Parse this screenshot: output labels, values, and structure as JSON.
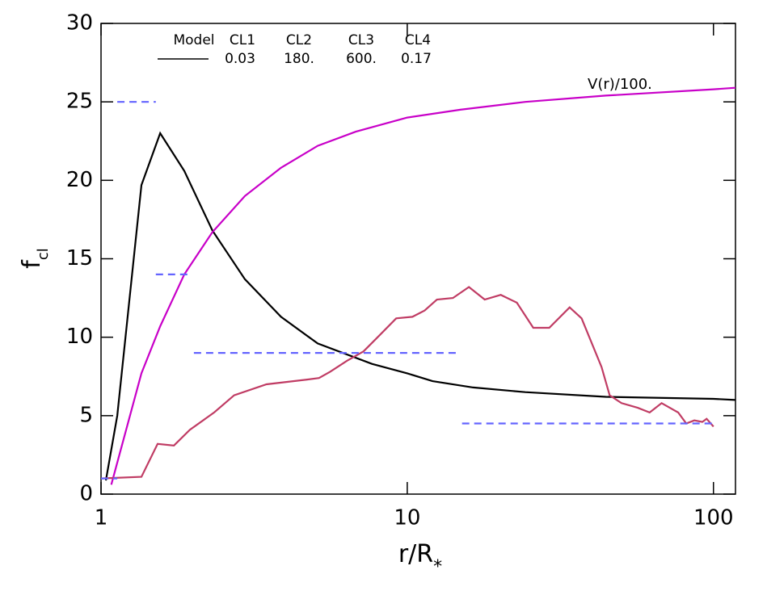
{
  "chart_data": {
    "type": "line",
    "xlabel": {
      "text": "r/R",
      "sub": "*"
    },
    "ylabel": {
      "text": "f",
      "sub": "cl"
    },
    "xlim": [
      1,
      118
    ],
    "xticks": [
      1,
      10,
      100
    ],
    "xscale": "log",
    "ylim": [
      0,
      30
    ],
    "yticks": [
      0,
      5,
      10,
      15,
      20,
      25,
      30
    ],
    "legend": {
      "headers": [
        "Model",
        "CL1",
        "CL2",
        "CL3",
        "CL4"
      ],
      "values": [
        "0.03",
        "180.",
        "600.",
        "0.17"
      ]
    },
    "series": [
      {
        "color": "#000000",
        "dash": false,
        "x": [
          1.037,
          1.13,
          1.355,
          1.56,
          1.87,
          2.31,
          2.95,
          3.87,
          5.1,
          7.67,
          10,
          12.1,
          16.4,
          24.3,
          44.5,
          100,
          118
        ],
        "values": [
          0.87,
          5,
          19.7,
          23.0,
          20.6,
          16.8,
          13.7,
          11.3,
          9.6,
          8.3,
          7.7,
          7.2,
          6.8,
          6.5,
          6.2,
          6.07,
          6.0
        ]
      },
      {
        "name": "V(r)/100.",
        "color": "#c800c8",
        "dash": false,
        "x": [
          1.08,
          1.355,
          1.56,
          1.87,
          2.31,
          2.95,
          3.87,
          5.1,
          6.79,
          10,
          14.9,
          24.3,
          44.5,
          100,
          118
        ],
        "values": [
          0.6,
          7.7,
          10.7,
          14.0,
          16.7,
          19.0,
          20.8,
          22.2,
          23.1,
          24.0,
          24.5,
          25.0,
          25.4,
          25.8,
          25.9
        ]
      },
      {
        "color": "#c03c64",
        "dash": false,
        "x": [
          1.0,
          1.355,
          1.53,
          1.73,
          1.95,
          2.34,
          2.72,
          3.47,
          4.71,
          5.15,
          5.6,
          6.36,
          7.2,
          8.1,
          9.2,
          10.4,
          11.4,
          12.5,
          14.1,
          15.9,
          17.9,
          20.2,
          22.8,
          25.8,
          29.1,
          33.9,
          37.1,
          43.1,
          45.8,
          50.1,
          56.6,
          61.9,
          67.7,
          76.7,
          81.5,
          86.6,
          92,
          95,
          100
        ],
        "values": [
          1.0,
          1.1,
          3.2,
          3.1,
          4.1,
          5.2,
          6.3,
          7.0,
          7.3,
          7.4,
          7.8,
          8.5,
          9.1,
          10.1,
          11.2,
          11.3,
          11.7,
          12.4,
          12.5,
          13.2,
          12.4,
          12.7,
          12.2,
          10.6,
          10.6,
          11.9,
          11.2,
          8.1,
          6.3,
          5.8,
          5.5,
          5.2,
          5.8,
          5.2,
          4.5,
          4.7,
          4.6,
          4.8,
          4.3
        ]
      },
      {
        "color": "#6464ff",
        "dash": true,
        "x": [
          1.0,
          1.13,
          null,
          1.13,
          1.51,
          null,
          1.51,
          1.92,
          null,
          2.01,
          14.5,
          null,
          15.1,
          100
        ],
        "values": [
          1.0,
          1.0,
          null,
          25,
          25,
          null,
          14,
          14,
          null,
          9,
          9,
          null,
          4.5,
          4.5
        ]
      }
    ]
  }
}
